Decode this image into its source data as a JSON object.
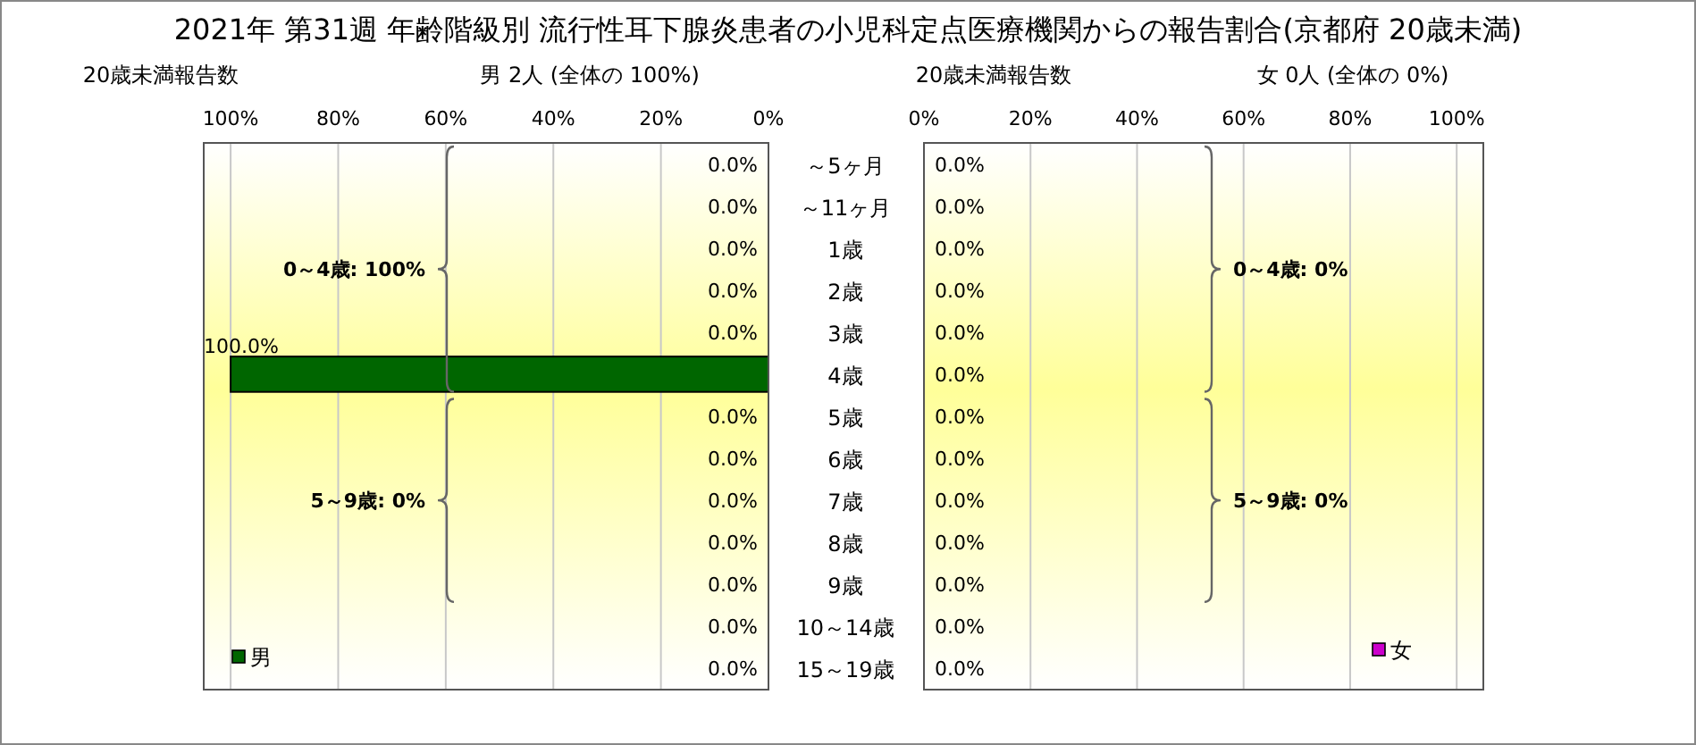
{
  "chart_data": [
    {
      "type": "bar",
      "orientation": "horizontal",
      "title": "2021年 第31週 年齢階級別 流行性耳下腺炎患者の小児科定点医療機関からの報告割合(京都府 20歳未満)",
      "subtitle": "男 2人 (全体の 100%)",
      "annotations": [
        "20歳未満報告数",
        "0～4歳: 100%",
        "5～9歳: 0%"
      ],
      "categories": [
        "～5ヶ月",
        "～11ヶ月",
        "1歳",
        "2歳",
        "3歳",
        "4歳",
        "5歳",
        "6歳",
        "7歳",
        "8歳",
        "9歳",
        "10～14歳",
        "15～19歳"
      ],
      "series": [
        {
          "name": "男",
          "color": "#006600",
          "values": [
            0,
            0,
            0,
            0,
            0,
            100,
            0,
            0,
            0,
            0,
            0,
            0,
            0
          ],
          "value_labels": [
            "0.0%",
            "0.0%",
            "0.0%",
            "0.0%",
            "0.0%",
            "100.0%",
            "0.0%",
            "0.0%",
            "0.0%",
            "0.0%",
            "0.0%",
            "0.0%",
            "0.0%"
          ]
        }
      ],
      "xlim": [
        105,
        0
      ],
      "xticks": [
        {
          "value": 100,
          "label": "100%"
        },
        {
          "value": 80,
          "label": "80%"
        },
        {
          "value": 60,
          "label": "60%"
        },
        {
          "value": 40,
          "label": "40%"
        },
        {
          "value": 20,
          "label": "20%"
        },
        {
          "value": 0,
          "label": "0%"
        }
      ],
      "grid": "x",
      "legend": "bottom left"
    },
    {
      "type": "bar",
      "orientation": "horizontal",
      "subtitle": "女 0人 (全体の 0%)",
      "annotations": [
        "20歳未満報告数",
        "0～4歳: 0%",
        "5～9歳: 0%"
      ],
      "series": [
        {
          "name": "女",
          "color": "#cc00cc",
          "values": [
            0,
            0,
            0,
            0,
            0,
            0,
            0,
            0,
            0,
            0,
            0,
            0,
            0
          ],
          "value_labels": [
            "0.0%",
            "0.0%",
            "0.0%",
            "0.0%",
            "0.0%",
            "0.0%",
            "0.0%",
            "0.0%",
            "0.0%",
            "0.0%",
            "0.0%",
            "0.0%",
            "0.0%"
          ]
        }
      ],
      "xlim": [
        0,
        105
      ],
      "xticks": [
        {
          "value": 0,
          "label": "0%"
        },
        {
          "value": 20,
          "label": "20%"
        },
        {
          "value": 40,
          "label": "40%"
        },
        {
          "value": 60,
          "label": "60%"
        },
        {
          "value": 80,
          "label": "80%"
        },
        {
          "value": 100,
          "label": "100%"
        }
      ],
      "grid": "x",
      "legend": "bottom right",
      "tick_labels": "x"
    }
  ]
}
